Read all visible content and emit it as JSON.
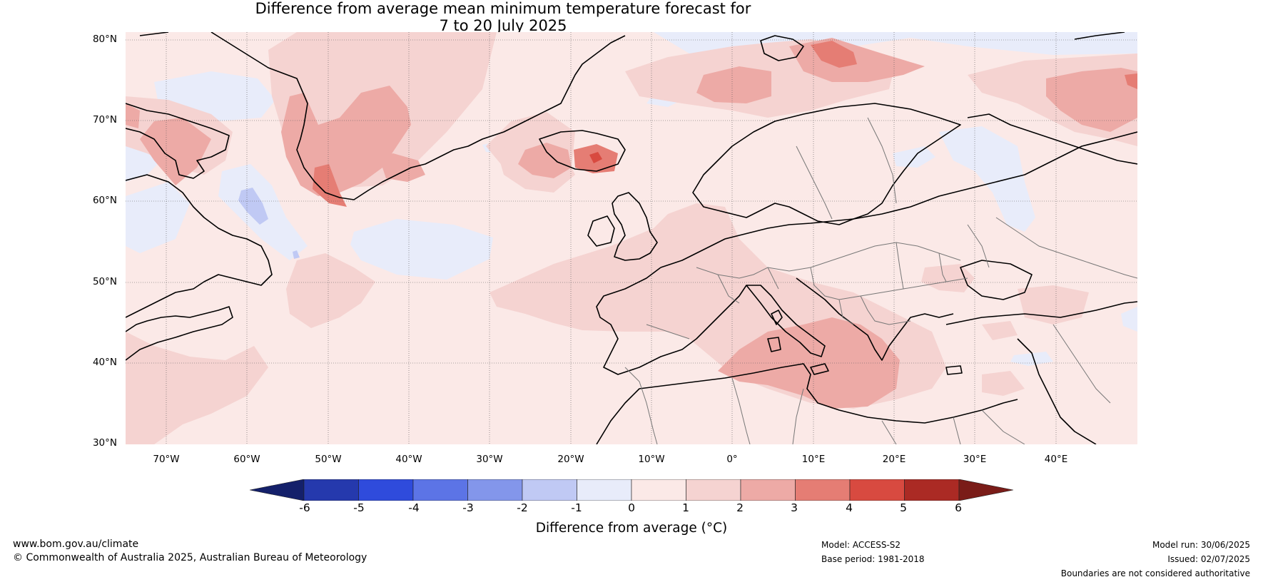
{
  "title": {
    "line1": "Difference from average mean minimum temperature forecast for",
    "line2": "7 to 20 July 2025"
  },
  "map": {
    "lat_labels": [
      "80°N",
      "70°N",
      "60°N",
      "50°N",
      "40°N",
      "30°N"
    ],
    "lon_labels": [
      "70°W",
      "60°W",
      "50°W",
      "40°W",
      "30°W",
      "20°W",
      "10°W",
      "0°",
      "10°E",
      "20°E",
      "30°E",
      "40°E"
    ],
    "lat_range": [
      30,
      81
    ],
    "lon_range": [
      -75,
      50
    ]
  },
  "colorbar": {
    "ticks": [
      "-6",
      "-5",
      "-4",
      "-3",
      "-2",
      "-1",
      "0",
      "1",
      "2",
      "3",
      "4",
      "5",
      "6"
    ],
    "colors": {
      "below_min": "#14206a",
      "levels": [
        "#2539ad",
        "#2f4bdc",
        "#5c74e6",
        "#8396eb",
        "#c0c9f4",
        "#e8ecfa",
        "#fbe9e7",
        "#f5d3d1",
        "#edaaa6",
        "#e57d74",
        "#d84a40",
        "#ab2a24"
      ],
      "above_max": "#7a1c18"
    },
    "label": "Difference from average (°C)"
  },
  "footer": {
    "website": "www.bom.gov.au/climate",
    "copyright": "© Commonwealth of Australia 2025, Australian Bureau of Meteorology",
    "model": "Model: ACCESS-S2",
    "base_period": "Base period: 1981-2018",
    "model_run": "Model run: 30/06/2025",
    "issued": "Issued: 02/07/2025",
    "disclaimer": "Boundaries are not considered authoritative"
  }
}
